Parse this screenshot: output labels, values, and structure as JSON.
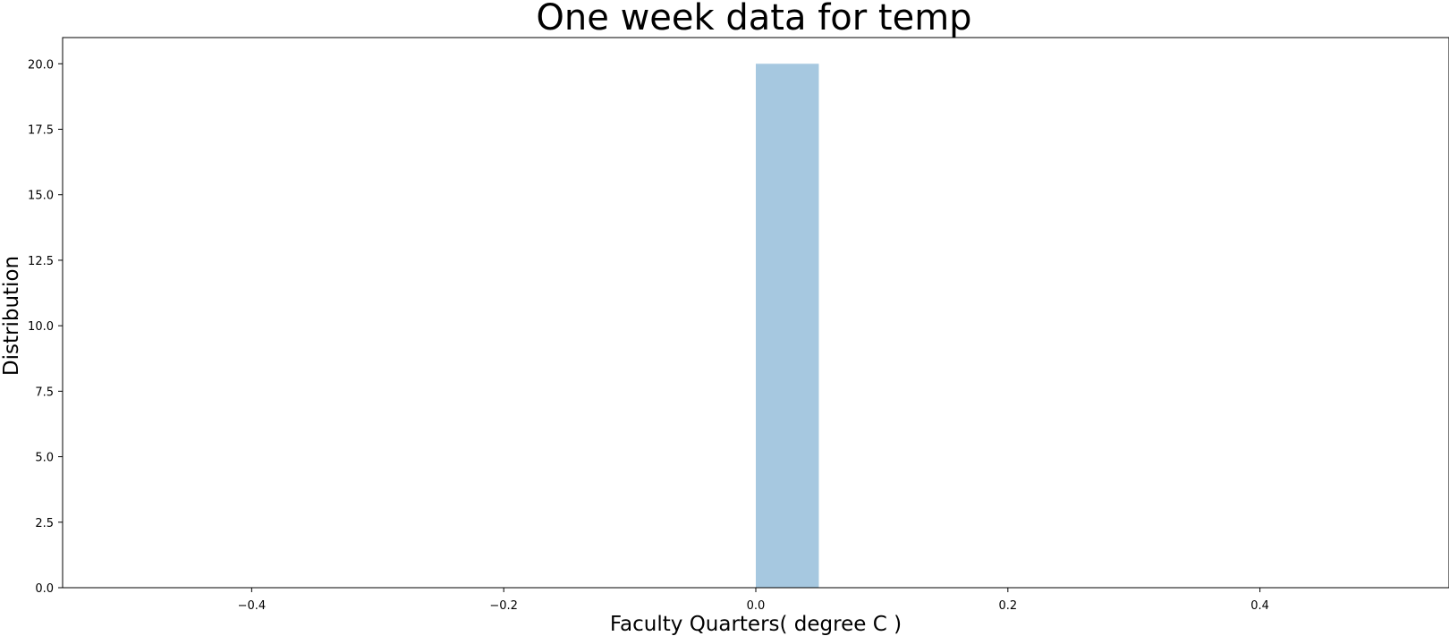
{
  "chart_data": {
    "type": "bar",
    "title": "One week data for temp",
    "xlabel": "Faculty Quarters( degree C )",
    "ylabel": "Distribution",
    "bins": [
      {
        "x0": 0.0,
        "x1": 0.05,
        "value": 20.0
      }
    ],
    "xlim": [
      -0.55,
      0.55
    ],
    "ylim": [
      0,
      21
    ],
    "xticks": [
      -0.4,
      -0.2,
      0.0,
      0.2,
      0.4
    ],
    "xtick_labels": [
      "−0.4",
      "−0.2",
      "0.0",
      "0.2",
      "0.4"
    ],
    "yticks": [
      0,
      2.5,
      5,
      7.5,
      10,
      12.5,
      15,
      17.5,
      20
    ],
    "ytick_labels": [
      "0.0",
      "2.5",
      "5.0",
      "7.5",
      "10.0",
      "12.5",
      "15.0",
      "17.5",
      "20.0"
    ],
    "grid": false,
    "legend": "none",
    "bar_color": "#a6c8e0"
  }
}
